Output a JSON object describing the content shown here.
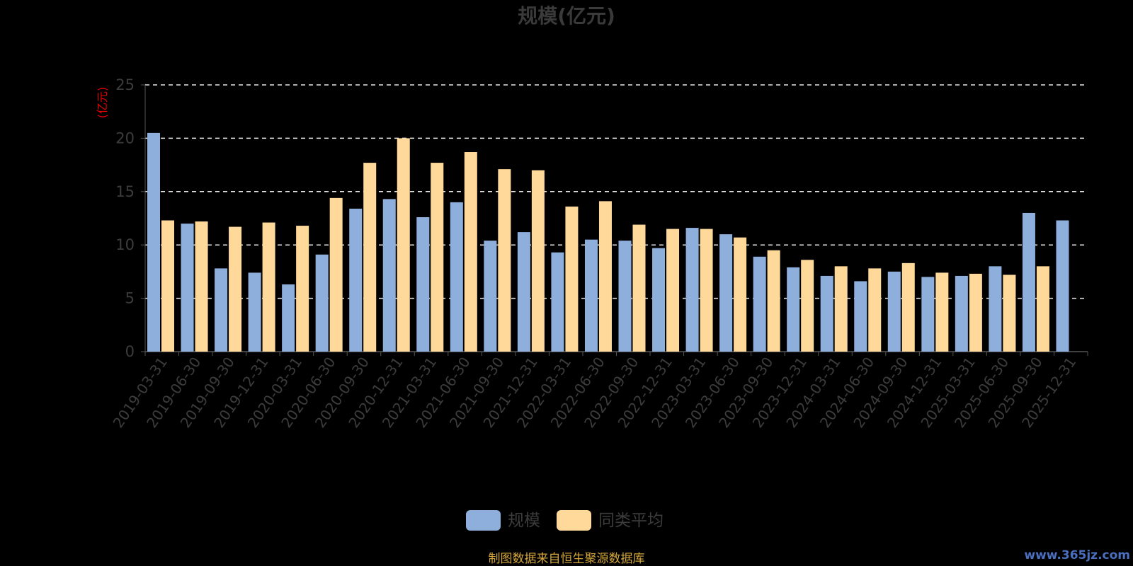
{
  "chart_data": {
    "type": "bar",
    "title": "规模(亿元)",
    "y_unit_label": "(亿元)",
    "ylim": [
      0,
      25
    ],
    "y_ticks": [
      0,
      5,
      10,
      15,
      20,
      25
    ],
    "grid": true,
    "legend_position": "bottom-center",
    "categories": [
      "2019-03-31",
      "2019-06-30",
      "2019-09-30",
      "2019-12-31",
      "2020-03-31",
      "2020-06-30",
      "2020-09-30",
      "2020-12-31",
      "2021-03-31",
      "2021-06-30",
      "2021-09-30",
      "2021-12-31",
      "2022-03-31",
      "2022-06-30",
      "2022-09-30",
      "2022-12-31",
      "2023-03-31",
      "2023-06-30",
      "2023-09-30",
      "2023-12-31",
      "2024-03-31",
      "2024-06-30",
      "2024-09-30",
      "2024-12-31",
      "2025-03-31",
      "2025-06-30",
      "2025-09-30",
      "2025-12-31"
    ],
    "series": [
      {
        "name": "规模",
        "color": "#8eaedc",
        "values": [
          20.5,
          12.0,
          7.8,
          7.4,
          6.3,
          9.1,
          13.4,
          14.3,
          12.6,
          14.0,
          10.4,
          11.2,
          9.3,
          10.5,
          10.4,
          9.7,
          11.6,
          11.0,
          8.9,
          7.9,
          7.1,
          6.6,
          7.5,
          7.0,
          7.1,
          8.0,
          13.0,
          12.3
        ]
      },
      {
        "name": "同类平均",
        "color": "#ffd99a",
        "values": [
          12.3,
          12.2,
          11.7,
          12.1,
          11.8,
          14.4,
          17.7,
          20.0,
          17.7,
          18.7,
          17.1,
          17.0,
          13.6,
          14.1,
          11.9,
          11.5,
          11.5,
          10.7,
          9.5,
          8.6,
          8.0,
          7.8,
          8.3,
          7.4,
          7.3,
          7.2,
          8.0,
          null
        ]
      }
    ]
  },
  "footer": {
    "source_note": "制图数据来自恒生聚源数据库",
    "watermark": "www.365jz.com"
  }
}
